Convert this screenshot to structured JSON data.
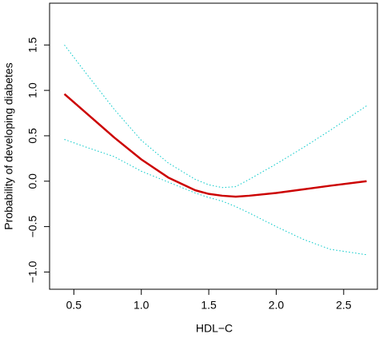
{
  "chart_data": {
    "type": "line",
    "xlabel": "HDL−C",
    "ylabel": "Probability of developing diabetes",
    "x": [
      0.43,
      0.6,
      0.8,
      1.0,
      1.2,
      1.4,
      1.5,
      1.6,
      1.7,
      1.8,
      2.0,
      2.2,
      2.4,
      2.67
    ],
    "series": [
      {
        "color": "#00c8c8",
        "style": "dotted",
        "width": 1,
        "values": [
          1.5,
          1.17,
          0.79,
          0.45,
          0.2,
          0.02,
          -0.04,
          -0.07,
          -0.06,
          0.02,
          0.19,
          0.37,
          0.56,
          0.83
        ]
      },
      {
        "color": "#00c8c8",
        "style": "dotted",
        "width": 1,
        "values": [
          0.46,
          0.37,
          0.27,
          0.11,
          -0.01,
          -0.13,
          -0.18,
          -0.22,
          -0.28,
          -0.35,
          -0.5,
          -0.64,
          -0.75,
          -0.81
        ]
      },
      {
        "color": "#cc0000",
        "style": "solid",
        "width": 2.5,
        "values": [
          0.96,
          0.74,
          0.48,
          0.24,
          0.04,
          -0.1,
          -0.14,
          -0.16,
          -0.17,
          -0.16,
          -0.13,
          -0.09,
          -0.05,
          0.0
        ]
      }
    ],
    "xlim": [
      0.32,
      2.75
    ],
    "ylim": [
      -1.19,
      1.96
    ],
    "xticks": [
      0.5,
      {
        "value": 1,
        "label": "1.0"
      },
      1.5,
      {
        "value": 2,
        "label": "2.0"
      },
      2.5
    ],
    "yticks": [
      {
        "value": -1,
        "label": "−1.0"
      },
      {
        "value": -0.5,
        "label": "−0.5"
      },
      {
        "value": 0,
        "label": "0.0"
      },
      0.5,
      {
        "value": 1,
        "label": "1.0"
      },
      1.5
    ]
  }
}
